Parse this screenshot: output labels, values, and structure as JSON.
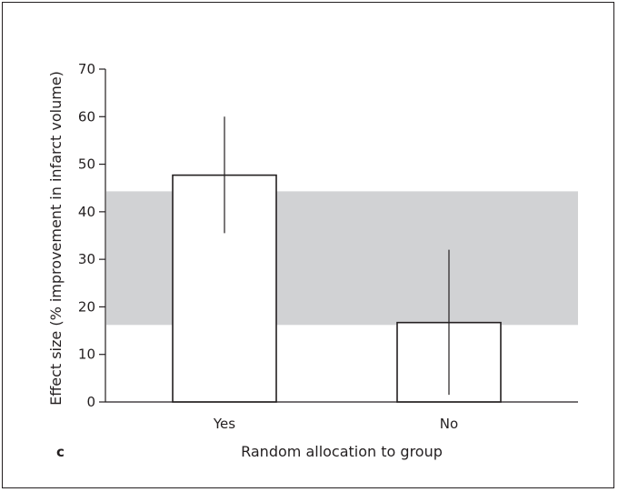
{
  "chart_data": {
    "type": "bar",
    "panel_label": "c",
    "categories": [
      "Yes",
      "No"
    ],
    "values": [
      47.7,
      16.7
    ],
    "error_bars": [
      {
        "low": 35.5,
        "high": 60.0
      },
      {
        "low": 1.5,
        "high": 32.0
      }
    ],
    "shaded_band": {
      "low": 16.2,
      "high": 44.3,
      "color": "#d1d2d4"
    },
    "xlabel": "Random allocation to group",
    "ylabel": "Effect size (% improvement in infarct volume)",
    "ylim": [
      0,
      70
    ],
    "yticks": [
      0,
      10,
      20,
      30,
      40,
      50,
      60,
      70
    ],
    "grid": false,
    "colors": {
      "bar_fill": "#ffffff",
      "stroke": "#231f20"
    }
  }
}
